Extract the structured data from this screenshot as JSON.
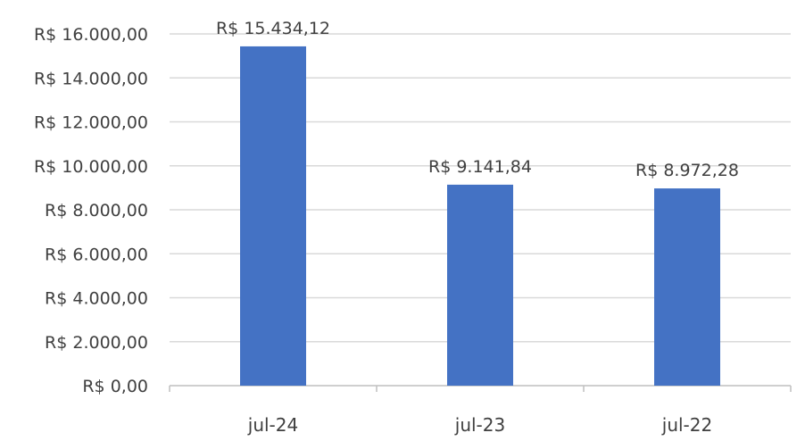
{
  "chart_data": {
    "type": "bar",
    "categories": [
      "jul-24",
      "jul-23",
      "jul-22"
    ],
    "values": [
      15434.12,
      9141.84,
      8972.28
    ],
    "data_labels": [
      "R$ 15.434,12",
      "R$ 9.141,84",
      "R$ 8.972,28"
    ],
    "ylim": [
      0,
      16000
    ],
    "y_tick_values": [
      0,
      2000,
      4000,
      6000,
      8000,
      10000,
      12000,
      14000,
      16000
    ],
    "y_tick_labels": [
      "R$ 0,00",
      "R$ 2.000,00",
      "R$ 4.000,00",
      "R$ 6.000,00",
      "R$ 8.000,00",
      "R$ 10.000,00",
      "R$ 12.000,00",
      "R$ 14.000,00",
      "R$ 16.000,00"
    ],
    "grid": true,
    "legend": "none",
    "bar_color": "#4472C4",
    "title": "",
    "xlabel": "",
    "ylabel": ""
  }
}
